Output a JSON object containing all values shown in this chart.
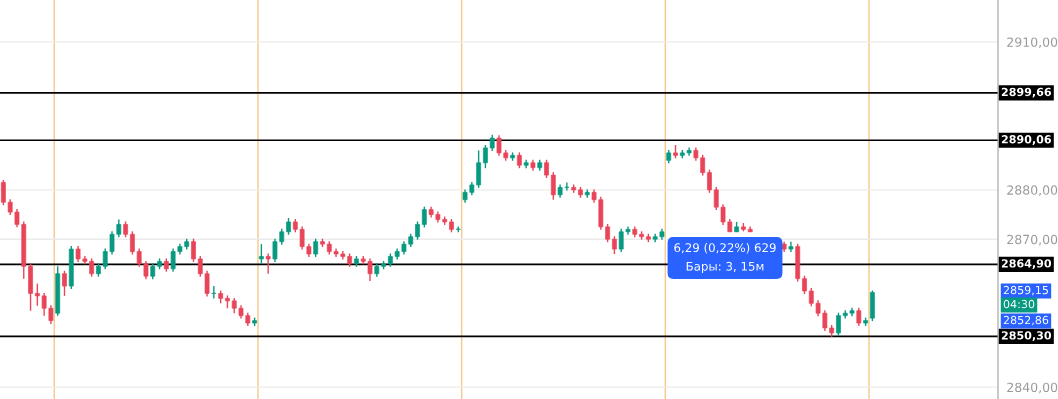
{
  "chart_data": {
    "type": "candlestick",
    "categories": [
      null,
      null,
      null,
      null,
      null,
      null,
      null,
      null,
      null,
      null,
      null,
      null,
      null,
      null,
      null,
      null,
      null,
      null,
      null,
      null,
      null,
      null,
      null,
      null,
      null,
      null,
      null,
      null,
      null,
      null,
      null,
      null,
      null,
      null,
      null,
      null,
      null,
      null,
      null,
      null,
      null,
      null,
      null,
      null,
      null,
      null,
      null,
      null,
      null,
      null,
      null,
      null,
      null,
      null,
      null,
      null,
      null,
      null,
      null,
      null,
      null,
      null,
      null,
      null,
      null,
      null,
      null,
      null,
      null,
      null,
      null,
      null,
      null,
      null,
      null,
      null,
      null,
      null,
      null,
      null,
      null,
      null,
      null,
      null,
      null,
      null,
      null,
      null,
      null,
      null,
      null,
      null,
      null,
      null,
      null,
      null,
      null,
      null,
      null,
      null,
      null,
      null,
      null,
      null,
      null,
      null,
      null,
      null,
      null,
      null,
      null,
      null,
      null,
      null,
      null,
      null,
      null,
      null,
      null,
      null,
      null,
      null,
      null,
      null,
      null,
      null,
      null,
      null,
      null,
      null,
      null,
      null,
      null,
      null,
      null,
      null,
      null,
      null,
      null,
      null,
      null,
      null,
      null,
      null,
      null,
      null,
      null
    ],
    "ohlc": [
      [
        2881.5,
        2882.0,
        2876.9,
        2877.5
      ],
      [
        2877.5,
        2878.1,
        2874.9,
        2875.5
      ],
      [
        2875.5,
        2876.1,
        2872.4,
        2873.0
      ],
      [
        2873.0,
        2873.6,
        2862.0,
        2864.5
      ],
      [
        2864.5,
        2865.1,
        2855.5,
        2859.0
      ],
      [
        2859.0,
        2861.0,
        2856.5,
        2858.5
      ],
      [
        2858.5,
        2859.1,
        2854.5,
        2856.0
      ],
      [
        2856.0,
        2856.6,
        2852.8,
        2853.5
      ],
      [
        2855.0,
        2864.5,
        2854.5,
        2863.0
      ],
      [
        2863.0,
        2863.6,
        2858.5,
        2860.5
      ],
      [
        2860.5,
        2868.6,
        2859.9,
        2868.0
      ],
      [
        2868.0,
        2868.6,
        2865.4,
        2866.0
      ],
      [
        2866.0,
        2866.6,
        2864.9,
        2865.5
      ],
      [
        2865.5,
        2866.1,
        2862.4,
        2863.0
      ],
      [
        2863.0,
        2865.1,
        2862.4,
        2864.5
      ],
      [
        2864.5,
        2868.1,
        2863.9,
        2867.5
      ],
      [
        2867.5,
        2871.6,
        2866.9,
        2871.0
      ],
      [
        2871.0,
        2874.0,
        2870.4,
        2873.0
      ],
      [
        2873.0,
        2873.6,
        2870.4,
        2871.0
      ],
      [
        2871.0,
        2871.6,
        2866.9,
        2867.5
      ],
      [
        2867.5,
        2868.1,
        2864.4,
        2865.0
      ],
      [
        2865.0,
        2865.6,
        2861.9,
        2862.5
      ],
      [
        2862.5,
        2865.1,
        2861.9,
        2864.5
      ],
      [
        2864.5,
        2866.1,
        2863.9,
        2865.5
      ],
      [
        2865.5,
        2866.1,
        2863.4,
        2864.0
      ],
      [
        2864.0,
        2868.1,
        2863.4,
        2867.5
      ],
      [
        2867.5,
        2869.1,
        2866.9,
        2868.5
      ],
      [
        2868.5,
        2870.1,
        2867.9,
        2869.5
      ],
      [
        2869.5,
        2870.1,
        2865.4,
        2866.0
      ],
      [
        2866.0,
        2866.6,
        2862.4,
        2863.0
      ],
      [
        2863.0,
        2863.6,
        2858.4,
        2859.0
      ],
      [
        2859.0,
        2860.5,
        2858.0,
        2859.0
      ],
      [
        2859.0,
        2859.6,
        2857.0,
        2858.0
      ],
      [
        2858.0,
        2858.6,
        2856.0,
        2857.5
      ],
      [
        2857.5,
        2858.1,
        2855.0,
        2856.0
      ],
      [
        2856.0,
        2856.6,
        2853.9,
        2854.5
      ],
      [
        2854.5,
        2855.1,
        2852.4,
        2853.0
      ],
      [
        2853.0,
        2854.1,
        2852.4,
        2853.5
      ],
      [
        2866.0,
        2869.0,
        2865.0,
        2866.5
      ],
      [
        2866.5,
        2867.1,
        2863.0,
        2866.0
      ],
      [
        2866.0,
        2870.1,
        2865.4,
        2869.5
      ],
      [
        2869.5,
        2872.1,
        2868.9,
        2871.5
      ],
      [
        2871.5,
        2874.3,
        2870.9,
        2873.5
      ],
      [
        2873.5,
        2874.1,
        2871.4,
        2872.0
      ],
      [
        2872.0,
        2872.6,
        2867.9,
        2868.5
      ],
      [
        2868.5,
        2869.1,
        2866.4,
        2867.0
      ],
      [
        2867.0,
        2870.1,
        2866.4,
        2869.5
      ],
      [
        2869.5,
        2870.1,
        2868.4,
        2869.0
      ],
      [
        2869.0,
        2869.6,
        2866.9,
        2867.5
      ],
      [
        2867.5,
        2868.1,
        2866.4,
        2867.0
      ],
      [
        2867.0,
        2867.6,
        2865.9,
        2866.5
      ],
      [
        2866.5,
        2867.1,
        2864.4,
        2865.0
      ],
      [
        2865.0,
        2866.6,
        2864.4,
        2866.0
      ],
      [
        2866.0,
        2866.6,
        2864.9,
        2865.5
      ],
      [
        2865.5,
        2866.1,
        2861.5,
        2863.0
      ],
      [
        2863.0,
        2865.1,
        2862.4,
        2864.5
      ],
      [
        2864.5,
        2865.6,
        2863.9,
        2865.0
      ],
      [
        2865.0,
        2867.1,
        2864.4,
        2866.5
      ],
      [
        2866.5,
        2868.1,
        2865.9,
        2867.5
      ],
      [
        2867.5,
        2869.6,
        2866.9,
        2869.0
      ],
      [
        2869.0,
        2871.1,
        2868.4,
        2870.5
      ],
      [
        2870.5,
        2873.6,
        2869.9,
        2873.0
      ],
      [
        2873.0,
        2876.6,
        2872.4,
        2876.0
      ],
      [
        2876.0,
        2876.6,
        2874.4,
        2875.0
      ],
      [
        2875.0,
        2875.6,
        2873.4,
        2874.0
      ],
      [
        2874.0,
        2874.6,
        2872.9,
        2873.5
      ],
      [
        2873.5,
        2874.1,
        2871.4,
        2872.0
      ],
      [
        2872.0,
        2872.6,
        2871.4,
        2872.0
      ],
      [
        2878.0,
        2880.1,
        2877.4,
        2879.5
      ],
      [
        2879.5,
        2881.6,
        2878.9,
        2881.0
      ],
      [
        2881.0,
        2888.0,
        2880.4,
        2885.5
      ],
      [
        2885.5,
        2889.1,
        2884.4,
        2888.5
      ],
      [
        2888.5,
        2891.2,
        2887.9,
        2890.5
      ],
      [
        2890.5,
        2891.1,
        2886.9,
        2887.5
      ],
      [
        2887.5,
        2888.1,
        2885.9,
        2886.5
      ],
      [
        2886.5,
        2887.6,
        2885.9,
        2887.0
      ],
      [
        2887.0,
        2887.6,
        2884.4,
        2885.0
      ],
      [
        2885.0,
        2886.1,
        2884.4,
        2885.5
      ],
      [
        2885.5,
        2886.1,
        2883.9,
        2884.5
      ],
      [
        2884.5,
        2886.1,
        2883.9,
        2885.5
      ],
      [
        2885.5,
        2886.1,
        2882.4,
        2883.0
      ],
      [
        2883.0,
        2883.6,
        2878.0,
        2879.0
      ],
      [
        2879.0,
        2881.1,
        2878.4,
        2880.5
      ],
      [
        2880.5,
        2881.5,
        2879.9,
        2880.5
      ],
      [
        2880.5,
        2881.1,
        2879.4,
        2880.0
      ],
      [
        2880.0,
        2880.6,
        2878.4,
        2879.0
      ],
      [
        2879.0,
        2880.1,
        2878.4,
        2879.5
      ],
      [
        2879.5,
        2880.1,
        2877.4,
        2878.0
      ],
      [
        2878.0,
        2878.6,
        2871.9,
        2872.5
      ],
      [
        2872.5,
        2873.1,
        2869.4,
        2870.0
      ],
      [
        2870.0,
        2870.6,
        2867.0,
        2868.0
      ],
      [
        2868.0,
        2872.1,
        2867.4,
        2871.5
      ],
      [
        2871.5,
        2872.6,
        2870.9,
        2872.0
      ],
      [
        2872.0,
        2872.6,
        2870.4,
        2871.0
      ],
      [
        2871.0,
        2871.6,
        2869.9,
        2870.5
      ],
      [
        2870.5,
        2871.1,
        2869.4,
        2870.0
      ],
      [
        2870.0,
        2871.1,
        2869.4,
        2870.5
      ],
      [
        2870.5,
        2872.1,
        2869.9,
        2871.5
      ],
      [
        2886.0,
        2888.1,
        2885.4,
        2887.5
      ],
      [
        2887.5,
        2889.1,
        2886.4,
        2887.0
      ],
      [
        2887.0,
        2888.1,
        2886.4,
        2887.5
      ],
      [
        2887.5,
        2888.6,
        2886.9,
        2888.0
      ],
      [
        2888.0,
        2888.6,
        2885.9,
        2886.5
      ],
      [
        2886.5,
        2887.1,
        2882.9,
        2883.5
      ],
      [
        2883.5,
        2884.1,
        2879.4,
        2880.0
      ],
      [
        2880.0,
        2880.6,
        2875.9,
        2876.5
      ],
      [
        2876.5,
        2877.1,
        2872.9,
        2873.5
      ],
      [
        2873.5,
        2874.1,
        2871.5,
        2871.5
      ],
      [
        2871.5,
        2873.5,
        2871.5,
        2872.5
      ],
      [
        2872.5,
        2873.3,
        2871.6,
        2872.0
      ],
      [
        2872.0,
        2872.6,
        2871.5,
        2871.5
      ],
      null,
      null,
      null,
      null,
      [
        2869.0,
        2869.5,
        2867.4,
        2868.0
      ],
      [
        2868.0,
        2869.5,
        2867.4,
        2868.5
      ],
      [
        2868.5,
        2869.1,
        2861.4,
        2862.0
      ],
      [
        2862.0,
        2862.6,
        2858.9,
        2859.5
      ],
      [
        2859.5,
        2860.1,
        2856.4,
        2857.0
      ],
      [
        2857.0,
        2857.6,
        2854.4,
        2855.0
      ],
      [
        2855.0,
        2855.6,
        2851.4,
        2852.0
      ],
      [
        2852.0,
        2852.6,
        2850.2,
        2851.0
      ],
      [
        2851.0,
        2855.1,
        2850.4,
        2854.5
      ],
      [
        2854.5,
        2855.6,
        2853.9,
        2855.0
      ],
      [
        2855.0,
        2856.1,
        2854.4,
        2855.5
      ],
      [
        2855.5,
        2856.1,
        2852.4,
        2853.0
      ],
      [
        2853.0,
        2854.1,
        2852.4,
        2853.5
      ],
      [
        2854.0,
        2859.6,
        2853.4,
        2859.2
      ],
      null,
      null,
      null,
      null,
      null,
      null,
      null,
      null,
      null,
      null,
      null,
      null,
      null,
      null,
      null,
      null,
      null,
      null
    ],
    "ylim": [
      2837.6,
      2918.5
    ],
    "yticks": [
      {
        "value": 2840,
        "label": "2840,00"
      },
      {
        "value": 2870,
        "label": "2870,00"
      },
      {
        "value": 2880,
        "label": "2880,00"
      },
      {
        "value": 2910,
        "label": "2910,00"
      }
    ],
    "grid": "y",
    "tick_labels": "y",
    "ref_lines": [
      {
        "axis": "y",
        "value": 2899.66,
        "label": "2899,66",
        "color": "#000000"
      },
      {
        "axis": "y",
        "value": 2890.06,
        "label": "2890,06",
        "color": "#000000"
      },
      {
        "axis": "y",
        "value": 2864.9,
        "label": "2864,90",
        "color": "#000000"
      },
      {
        "axis": "y",
        "value": 2850.3,
        "label": "2850,30",
        "color": "#000000"
      }
    ],
    "annotations": [
      "6,29 (0,22%) 629",
      "Бары: 3, 15м",
      "2859,15",
      "04:30",
      "2852,86"
    ]
  }
}
